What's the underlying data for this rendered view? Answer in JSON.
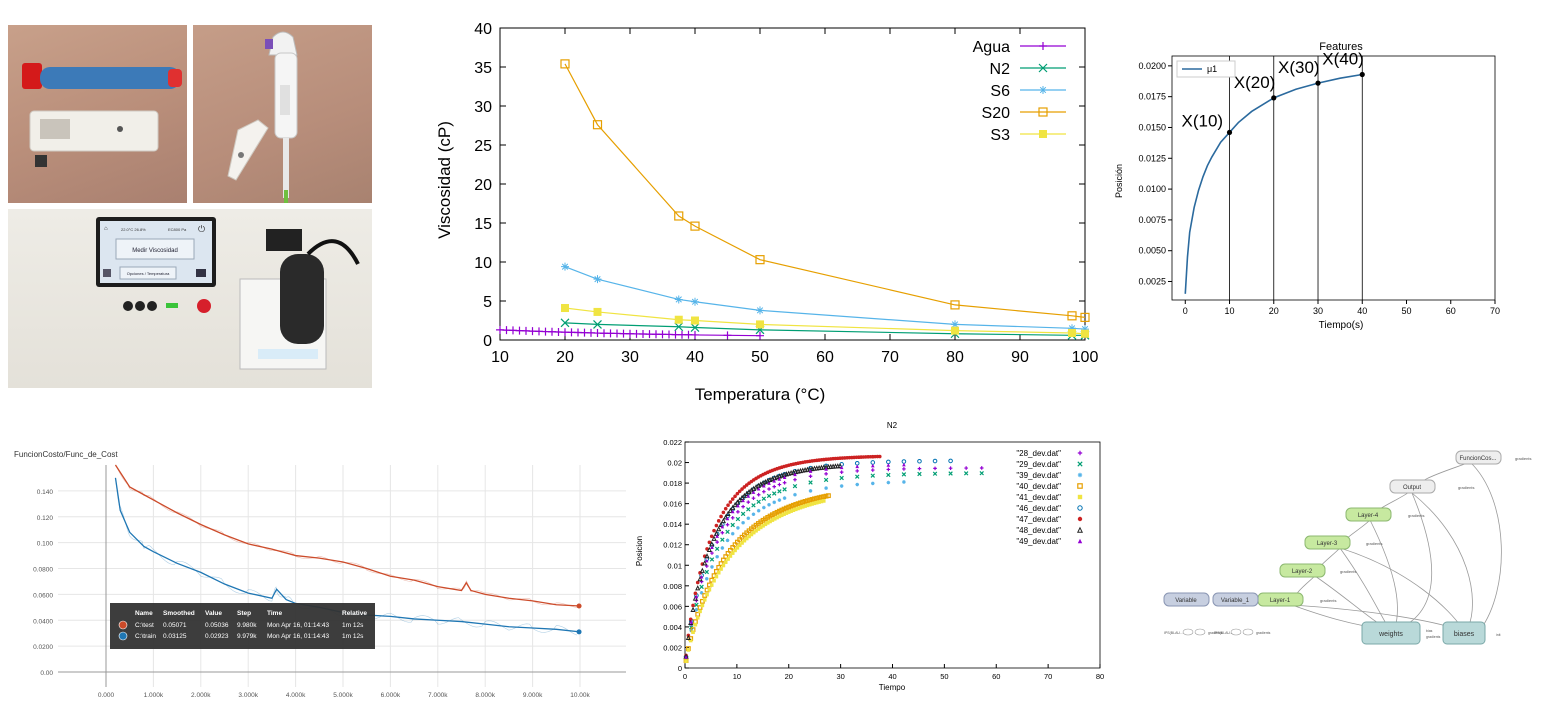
{
  "colors": {
    "agua": "#9400d3",
    "n2": "#009e73",
    "s6": "#56b4e9",
    "s20": "#e69f00",
    "s3": "#f0e442",
    "mu1": "#2b6a9e",
    "tb_test": "#cc4b2a",
    "tb_train": "#1f77b4",
    "node_green": "#c7e9a0",
    "node_blue": "#b9d9d9",
    "node_slate": "#c7cfe0",
    "node_grey": "#eeeeee"
  },
  "photos": {
    "device_screen_button": "Medir Viscosidad",
    "device_screen_status_left": "22.0°C 26.8%",
    "device_screen_status_right": "EC800 Pa",
    "device_screen_sub": "Opciones / Temperatura"
  },
  "viscosity_chart": {
    "chart_data": {
      "type": "line",
      "xlabel": "Temperatura (°C)",
      "ylabel": "Viscosidad (cP)",
      "xlim": [
        10,
        100
      ],
      "ylim": [
        0,
        40
      ],
      "xticks": [
        "10",
        "20",
        "30",
        "40",
        "50",
        "60",
        "70",
        "80",
        "90",
        "100"
      ],
      "yticks": [
        "0",
        "5",
        "10",
        "15",
        "20",
        "25",
        "30",
        "35",
        "40"
      ],
      "legend": "top-right",
      "series": [
        {
          "name": "Agua",
          "marker": "plus",
          "x": [
            10,
            11,
            12,
            13,
            14,
            15,
            16,
            17,
            18,
            19,
            20,
            21,
            22,
            23,
            24,
            25,
            26,
            27,
            28,
            29,
            30,
            31,
            32,
            33,
            34,
            35,
            36,
            37,
            38,
            39,
            40,
            45,
            50
          ],
          "y": [
            1.3,
            1.27,
            1.23,
            1.2,
            1.17,
            1.14,
            1.11,
            1.08,
            1.06,
            1.03,
            1.0,
            0.98,
            0.96,
            0.94,
            0.91,
            0.89,
            0.87,
            0.85,
            0.84,
            0.82,
            0.8,
            0.78,
            0.77,
            0.75,
            0.74,
            0.72,
            0.71,
            0.69,
            0.68,
            0.67,
            0.65,
            0.6,
            0.55
          ]
        },
        {
          "name": "N2",
          "marker": "x",
          "x": [
            20,
            25,
            37.5,
            40,
            50,
            80,
            98,
            100
          ],
          "y": [
            2.2,
            2.0,
            1.7,
            1.6,
            1.3,
            0.8,
            0.6,
            0.6
          ]
        },
        {
          "name": "S6",
          "marker": "star",
          "x": [
            20,
            25,
            37.5,
            40,
            50,
            80,
            98,
            100
          ],
          "y": [
            9.4,
            7.8,
            5.2,
            4.9,
            3.8,
            2.0,
            1.5,
            1.4
          ]
        },
        {
          "name": "S20",
          "marker": "square-open",
          "x": [
            20,
            25,
            37.5,
            40,
            50,
            80,
            98,
            100
          ],
          "y": [
            35.4,
            27.6,
            15.9,
            14.6,
            10.3,
            4.5,
            3.1,
            2.9
          ]
        },
        {
          "name": "S3",
          "marker": "square-filled",
          "x": [
            20,
            25,
            37.5,
            40,
            50,
            80,
            98,
            100
          ],
          "y": [
            4.1,
            3.6,
            2.6,
            2.5,
            2.0,
            1.2,
            0.9,
            0.8
          ]
        }
      ]
    }
  },
  "features_chart": {
    "chart_data": {
      "type": "line",
      "title": "Features",
      "xlabel": "Tiempo(s)",
      "ylabel": "Posición",
      "xlim": [
        -3,
        70
      ],
      "ylim": [
        0.001,
        0.0208
      ],
      "xticks": [
        "0",
        "10",
        "20",
        "30",
        "40",
        "50",
        "60",
        "70"
      ],
      "yticks": [
        "0.0025",
        "0.0050",
        "0.0075",
        "0.0100",
        "0.0125",
        "0.0150",
        "0.0175",
        "0.0200"
      ],
      "legend": "top-left",
      "series": [
        {
          "name": "μ1",
          "x": [
            0,
            0.5,
            1,
            2,
            3,
            4,
            5,
            6,
            8,
            10,
            12,
            15,
            20,
            25,
            30,
            35,
            40
          ],
          "y": [
            0.0015,
            0.0045,
            0.0065,
            0.0085,
            0.0099,
            0.011,
            0.0119,
            0.0126,
            0.0138,
            0.0146,
            0.0154,
            0.0163,
            0.0174,
            0.0181,
            0.0186,
            0.019,
            0.0193
          ]
        }
      ],
      "vlines": [
        10,
        20,
        30,
        40
      ],
      "annotations": [
        "X(10)",
        "X(20)",
        "X(30)",
        "X(40)"
      ],
      "annotation_points": [
        [
          10,
          0.0146
        ],
        [
          20,
          0.0174
        ],
        [
          30,
          0.0186
        ],
        [
          40,
          0.0193
        ]
      ]
    }
  },
  "tensorboard": {
    "chart_data": {
      "type": "line",
      "title": "FuncionCosto/Func_de_Cost",
      "xlim": [
        0,
        10000
      ],
      "ylim": [
        0,
        0.16
      ],
      "xticks": [
        "0.000",
        "1.000k",
        "2.000k",
        "3.000k",
        "4.000k",
        "5.000k",
        "6.000k",
        "7.000k",
        "8.000k",
        "9.000k",
        "10.00k"
      ],
      "yticks": [
        "0.00",
        "0.0200",
        "0.0400",
        "0.0600",
        "0.0800",
        "0.100",
        "0.120",
        "0.140"
      ],
      "series": [
        {
          "name": "C:\\test",
          "x": [
            200,
            500,
            800,
            1000,
            1500,
            2000,
            2500,
            3000,
            3500,
            4000,
            4500,
            5000,
            5500,
            6000,
            6500,
            7000,
            7500,
            7600,
            7700,
            8000,
            8500,
            9000,
            9500,
            10000
          ],
          "y": [
            0.16,
            0.143,
            0.137,
            0.133,
            0.123,
            0.114,
            0.106,
            0.099,
            0.095,
            0.09,
            0.088,
            0.085,
            0.08,
            0.074,
            0.071,
            0.066,
            0.063,
            0.069,
            0.063,
            0.06,
            0.057,
            0.055,
            0.052,
            0.051
          ]
        },
        {
          "name": "C:\\train",
          "x": [
            200,
            300,
            500,
            800,
            1000,
            1500,
            2000,
            2500,
            3000,
            3500,
            3600,
            3800,
            4000,
            4500,
            5000,
            5500,
            6000,
            6500,
            7000,
            7500,
            8000,
            8500,
            9000,
            9500,
            10000
          ],
          "y": [
            0.15,
            0.125,
            0.108,
            0.097,
            0.093,
            0.084,
            0.077,
            0.068,
            0.061,
            0.057,
            0.064,
            0.056,
            0.053,
            0.05,
            0.046,
            0.044,
            0.043,
            0.041,
            0.04,
            0.039,
            0.037,
            0.035,
            0.034,
            0.033,
            0.031
          ]
        }
      ],
      "tooltip": {
        "headers": [
          "Name",
          "Smoothed",
          "Value",
          "Step",
          "Time",
          "Relative"
        ],
        "rows": [
          [
            "C:\\test",
            "0.05071",
            "0.05036",
            "9.980k",
            "Mon Apr 16, 01:14:43",
            "1m 12s"
          ],
          [
            "C:\\train",
            "0.03125",
            "0.02923",
            "9.979k",
            "Mon Apr 16, 01:14:43",
            "1m 12s"
          ]
        ]
      }
    }
  },
  "n2_chart": {
    "chart_data": {
      "type": "scatter",
      "title": "N2",
      "xlabel": "Tiempo",
      "ylabel": "Posicion",
      "xlim": [
        0,
        80
      ],
      "ylim": [
        0,
        0.022
      ],
      "xticks": [
        "0",
        "10",
        "20",
        "30",
        "40",
        "50",
        "60",
        "70",
        "80"
      ],
      "yticks": [
        "0",
        "0.002",
        "0.004",
        "0.006",
        "0.008",
        "0.01",
        "0.012",
        "0.014",
        "0.016",
        "0.018",
        "0.02",
        "0.022"
      ],
      "legend": "top-right",
      "series": [
        {
          "name": "\"28_dev.dat\"",
          "marker": "+",
          "color": "#9400d3",
          "xmax": 60,
          "plateau": 0.0195,
          "k": 0.21
        },
        {
          "name": "\"29_dev.dat\"",
          "marker": "x",
          "color": "#009e73",
          "xmax": 58,
          "plateau": 0.019,
          "k": 0.2
        },
        {
          "name": "\"39_dev.dat\"",
          "marker": "*",
          "color": "#56b4e9",
          "xmax": 45,
          "plateau": 0.0183,
          "k": 0.19
        },
        {
          "name": "\"40_dev.dat\"",
          "marker": "square-open",
          "color": "#e69f00",
          "xmax": 28,
          "plateau": 0.018,
          "k": 0.16
        },
        {
          "name": "\"41_dev.dat\"",
          "marker": "square-filled",
          "color": "#f0e442",
          "xmax": 27,
          "plateau": 0.0178,
          "k": 0.15
        },
        {
          "name": "\"46_dev.dat\"",
          "marker": "circle-open",
          "color": "#0072b2",
          "xmax": 53,
          "plateau": 0.0202,
          "k": 0.22
        },
        {
          "name": "\"47_dev.dat\"",
          "marker": "circle-filled",
          "color": "#cc2222",
          "xmax": 38,
          "plateau": 0.0207,
          "k": 0.24
        },
        {
          "name": "\"48_dev.dat\"",
          "marker": "triangle-open",
          "color": "#222222",
          "xmax": 30,
          "plateau": 0.02,
          "k": 0.23
        },
        {
          "name": "\"49_dev.dat\"",
          "marker": "triangle-filled",
          "color": "#9400d3",
          "xmax": 45,
          "plateau": 0.0199,
          "k": 0.22
        }
      ]
    }
  },
  "graph": {
    "nodes": {
      "funcioncosto": "FuncionCos...",
      "output": "Output",
      "layer4": "Layer-4",
      "layer3": "Layer-3",
      "layer2": "Layer-2",
      "layer1": "Layer-1",
      "variable": "Variable",
      "variable1": "Variable_1",
      "weights": "weights",
      "biases": "biases"
    },
    "small_labels": {
      "gradients": "gradients",
      "bias": "bias",
      "init": "init",
      "placeholder": "IPS(BLAU..."
    }
  }
}
